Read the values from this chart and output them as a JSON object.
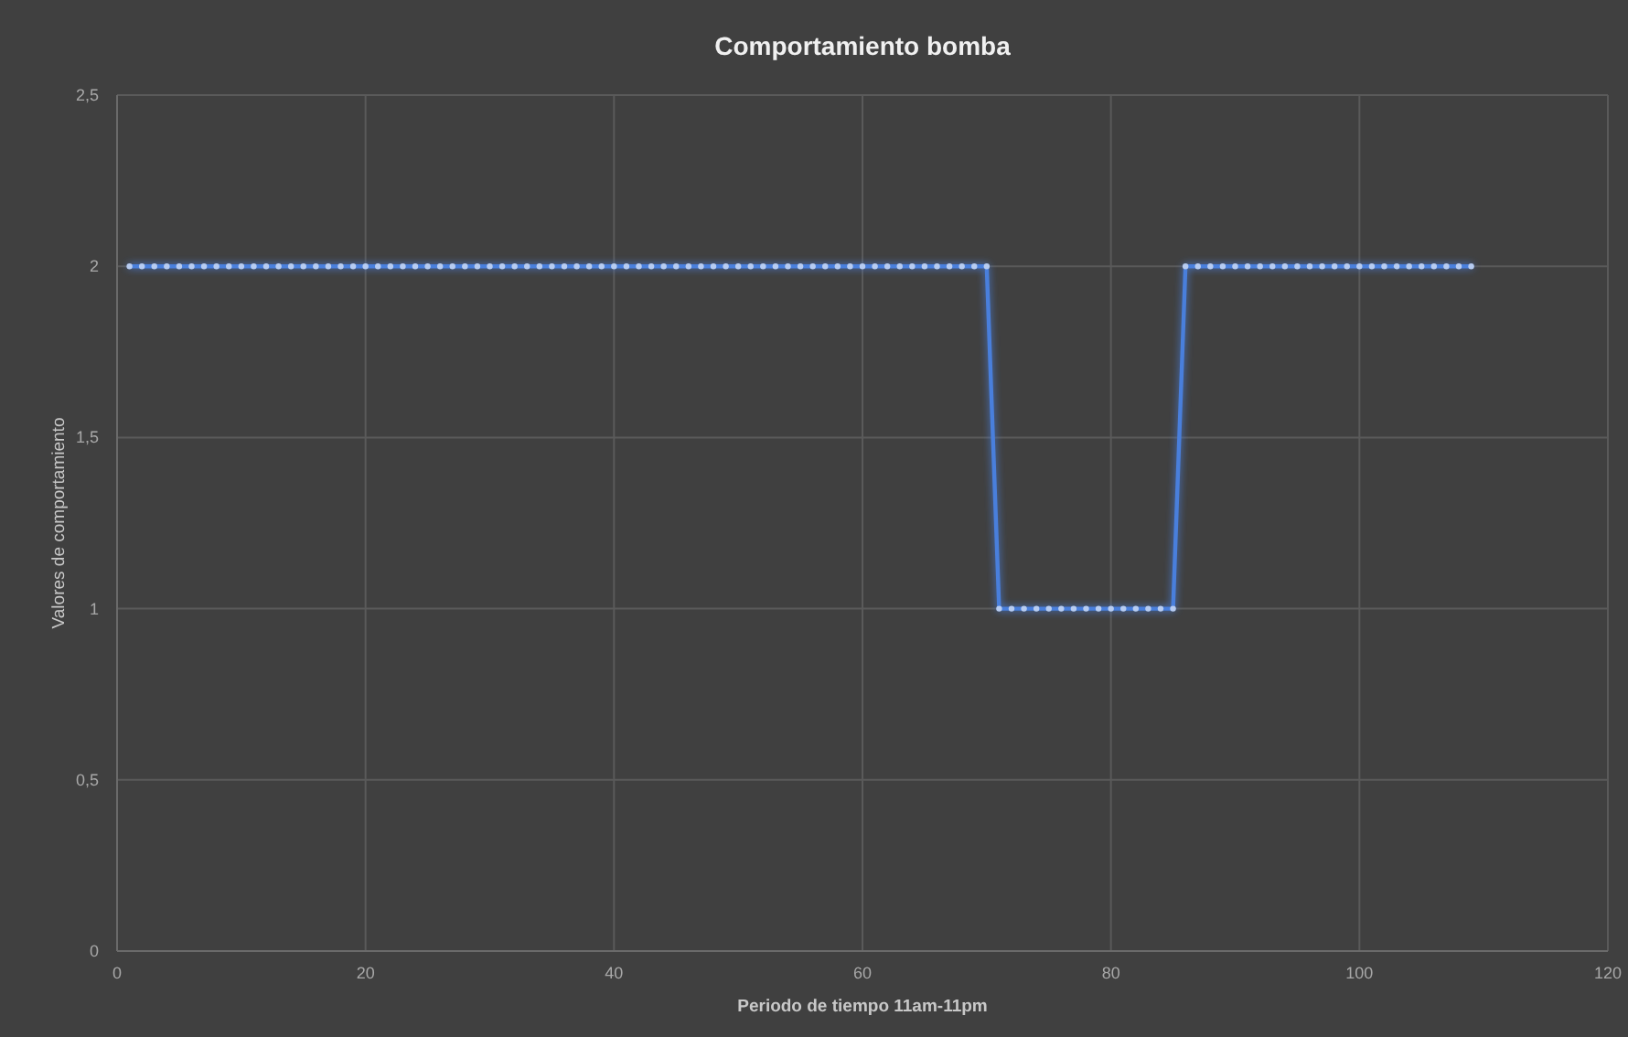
{
  "chart_data": {
    "type": "line",
    "title": "Comportamiento bomba",
    "xlabel": "Periodo de tiempo  11am-11pm",
    "ylabel": "Valores de comportamiento",
    "xlim": [
      0,
      120
    ],
    "xticks": [
      0,
      20,
      40,
      60,
      80,
      100,
      120
    ],
    "ylim": [
      0,
      2.5
    ],
    "yticks": [
      0,
      {
        "value": 0.5,
        "label": "0,5"
      },
      1,
      {
        "value": 1.5,
        "label": "1,5"
      },
      2,
      {
        "value": 2.5,
        "label": "2,5"
      }
    ],
    "grid": true,
    "marker": "circle",
    "line_style": "solid",
    "series": [
      {
        "color": "#4a7fdc",
        "x": [
          1,
          2,
          3,
          4,
          5,
          6,
          7,
          8,
          9,
          10,
          11,
          12,
          13,
          14,
          15,
          16,
          17,
          18,
          19,
          20,
          21,
          22,
          23,
          24,
          25,
          26,
          27,
          28,
          29,
          30,
          31,
          32,
          33,
          34,
          35,
          36,
          37,
          38,
          39,
          40,
          41,
          42,
          43,
          44,
          45,
          46,
          47,
          48,
          49,
          50,
          51,
          52,
          53,
          54,
          55,
          56,
          57,
          58,
          59,
          60,
          61,
          62,
          63,
          64,
          65,
          66,
          67,
          68,
          69,
          70,
          71,
          72,
          73,
          74,
          75,
          76,
          77,
          78,
          79,
          80,
          81,
          82,
          83,
          84,
          85,
          86,
          87,
          88,
          89,
          90,
          91,
          92,
          93,
          94,
          95,
          96,
          97,
          98,
          99,
          100,
          101,
          102,
          103,
          104,
          105,
          106,
          107,
          108,
          109
        ],
        "values": [
          2,
          2,
          2,
          2,
          2,
          2,
          2,
          2,
          2,
          2,
          2,
          2,
          2,
          2,
          2,
          2,
          2,
          2,
          2,
          2,
          2,
          2,
          2,
          2,
          2,
          2,
          2,
          2,
          2,
          2,
          2,
          2,
          2,
          2,
          2,
          2,
          2,
          2,
          2,
          2,
          2,
          2,
          2,
          2,
          2,
          2,
          2,
          2,
          2,
          2,
          2,
          2,
          2,
          2,
          2,
          2,
          2,
          2,
          2,
          2,
          2,
          2,
          2,
          2,
          2,
          2,
          2,
          2,
          2,
          2,
          1,
          1,
          1,
          1,
          1,
          1,
          1,
          1,
          1,
          1,
          1,
          1,
          1,
          1,
          1,
          2,
          2,
          2,
          2,
          2,
          2,
          2,
          2,
          2,
          2,
          2,
          2,
          2,
          2,
          2,
          2,
          2,
          2,
          2,
          2,
          2,
          2,
          2,
          2
        ]
      }
    ]
  }
}
